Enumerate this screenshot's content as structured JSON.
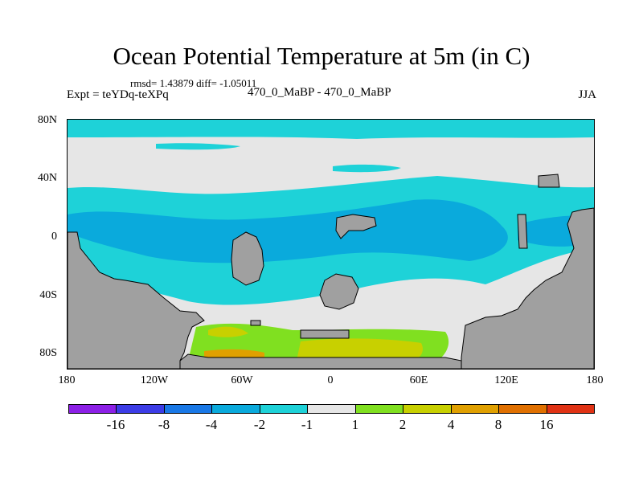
{
  "title": "Ocean Potential Temperature at 5m (in C)",
  "stats": "rmsd= 1.43879 diff= -1.05011",
  "expt": "Expt = teYDq-teXPq",
  "subtitle": "470_0_MaBP - 470_0_MaBP",
  "season": "JJA",
  "y_axis": {
    "labels": [
      "80N",
      "40N",
      "0",
      "40S",
      "80S"
    ]
  },
  "x_axis": {
    "labels": [
      "180",
      "120W",
      "60W",
      "0",
      "60E",
      "120E",
      "180"
    ]
  },
  "colors": {
    "land": "#a0a0a0",
    "near_zero": "#e6e6e6",
    "cool1": "#1ed2d8",
    "cool2": "#0aaadc",
    "warm1": "#80e020",
    "warm2": "#c8d000",
    "warm3": "#e0a000"
  },
  "colorbar": {
    "colors": [
      "#8c20e6",
      "#3c3ce6",
      "#1978e6",
      "#0aaadc",
      "#1ed2d8",
      "#e6e6e6",
      "#80e020",
      "#c8d000",
      "#e0a000",
      "#e07000",
      "#e03214"
    ],
    "labels": [
      "-16",
      "-8",
      "-4",
      "-2",
      "-1",
      "1",
      "2",
      "4",
      "8",
      "16"
    ]
  }
}
